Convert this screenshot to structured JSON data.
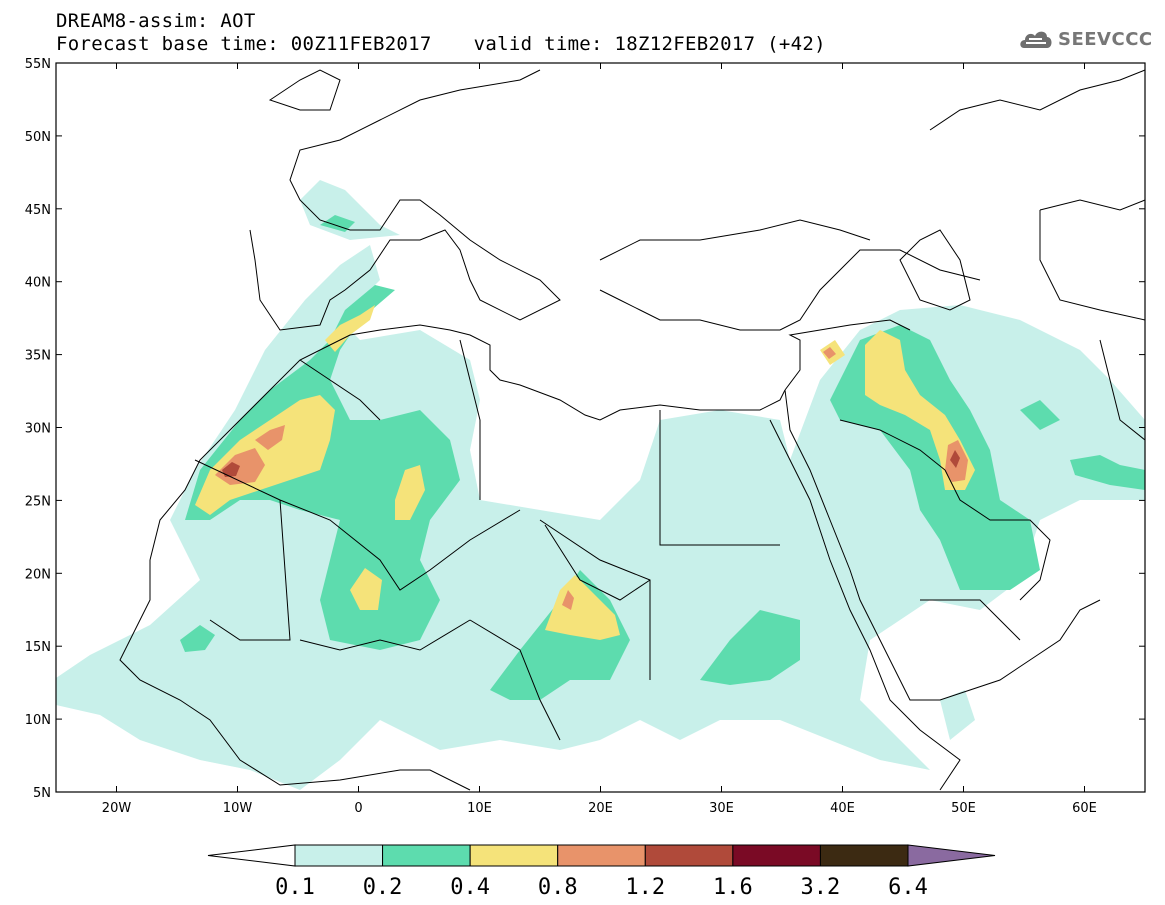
{
  "header": {
    "line1": "DREAM8-assim: AOT",
    "forecast_base": "Forecast base time: 00Z11FEB2017",
    "valid_time": "valid time: 18Z12FEB2017 (+42)"
  },
  "logo": {
    "text": "SEEVCCC",
    "icon": "cloud-icon"
  },
  "map": {
    "lon_range": [
      -25,
      65
    ],
    "lat_range": [
      5,
      55
    ],
    "lat_ticks": [
      "55N",
      "50N",
      "45N",
      "40N",
      "35N",
      "30N",
      "25N",
      "20N",
      "15N",
      "10N",
      "5N"
    ],
    "lon_ticks": [
      "20W",
      "10W",
      "0",
      "10E",
      "20E",
      "30E",
      "40E",
      "50E",
      "60E"
    ]
  },
  "colorbar": {
    "labels": [
      "0.1",
      "0.2",
      "0.4",
      "0.8",
      "1.2",
      "1.6",
      "3.2",
      "6.4"
    ],
    "colors": [
      "#ffffff",
      "#c8f0ea",
      "#5ddcae",
      "#f5e37a",
      "#e8936a",
      "#b04a3a",
      "#7a0a25",
      "#3c2a12",
      "#8a6aa0"
    ]
  }
}
